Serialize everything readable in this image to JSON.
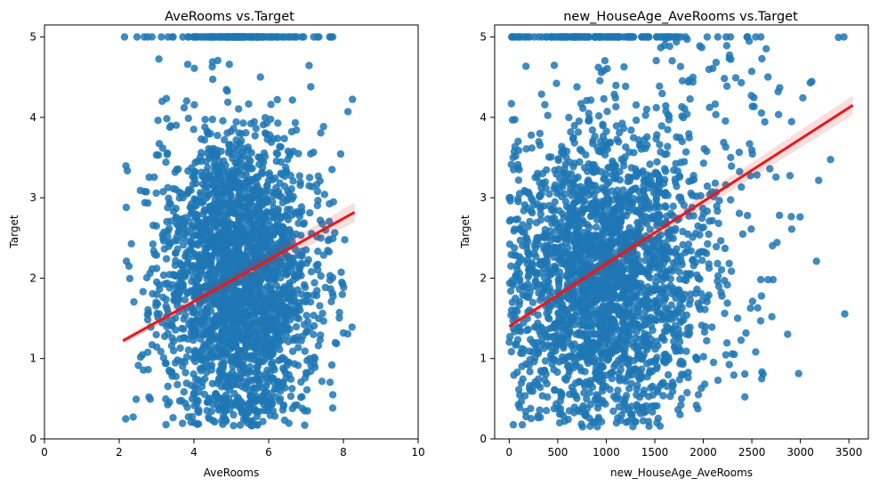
{
  "chart_data": [
    {
      "type": "scatter",
      "title": "AveRooms vs.Target",
      "xlabel": "AveRooms",
      "ylabel": "Target",
      "xlim": [
        0,
        10
      ],
      "ylim": [
        0,
        5.15
      ],
      "xticks": [
        "0",
        "2",
        "4",
        "6",
        "8",
        "10"
      ],
      "yticks": [
        "0",
        "1",
        "2",
        "3",
        "4",
        "5"
      ],
      "point_color": "#1f77b4",
      "regression_color": "#e31a1c",
      "cloud": {
        "x_center": 5.2,
        "x_spread": 1.05,
        "x_min": 2.1,
        "x_max": 8.3,
        "y_center": 2.0,
        "y_spread": 0.95,
        "y_min": 0.15,
        "cap": 5.0
      },
      "regression": {
        "x": [
          2.1,
          8.3
        ],
        "y": [
          1.22,
          2.82
        ]
      }
    },
    {
      "type": "scatter",
      "title": "new_HouseAge_AveRooms vs.Target",
      "xlabel": "new_HouseAge_AveRooms",
      "ylabel": "Target",
      "xlim": [
        -150,
        3700
      ],
      "ylim": [
        0,
        5.15
      ],
      "xticks": [
        "0",
        "500",
        "1000",
        "1500",
        "2000",
        "2500",
        "3000",
        "3500"
      ],
      "yticks": [
        "0",
        "1",
        "2",
        "3",
        "4",
        "5"
      ],
      "point_color": "#1f77b4",
      "regression_color": "#e31a1c",
      "cloud": {
        "x_center": 950,
        "x_spread": 480,
        "x_min": 0,
        "x_max": 3550,
        "y_center": 2.0,
        "y_spread": 0.95,
        "y_min": 0.15,
        "cap": 5.0
      },
      "regression": {
        "x": [
          0,
          3540
        ],
        "y": [
          1.4,
          4.15
        ]
      }
    }
  ]
}
